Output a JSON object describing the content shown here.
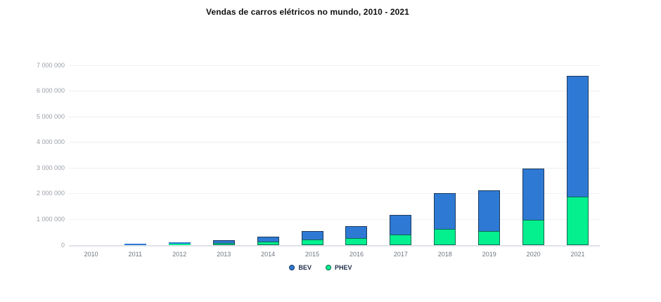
{
  "title": "Vendas de carros elétricos no mundo, 2010 - 2021",
  "chart_data": {
    "type": "bar",
    "stacked": true,
    "title": "Vendas de carros elétricos no mundo, 2010 - 2021",
    "xlabel": "",
    "ylabel": "",
    "categories": [
      "2010",
      "2011",
      "2012",
      "2013",
      "2014",
      "2015",
      "2016",
      "2017",
      "2018",
      "2019",
      "2020",
      "2021"
    ],
    "series": [
      {
        "name": "BEV",
        "color": "#2e79d4",
        "border_color": "#1b3a5c",
        "values": [
          6000,
          55000,
          65000,
          115000,
          195000,
          330000,
          470000,
          760000,
          1380000,
          1560000,
          2000000,
          4700000
        ]
      },
      {
        "name": "PHEV",
        "color": "#04ef8e",
        "border_color": "#0d6b52",
        "values": [
          1000,
          10000,
          55000,
          90000,
          135000,
          220000,
          280000,
          410000,
          630000,
          560000,
          990000,
          1900000
        ]
      }
    ],
    "stack_order_bottom_to_top": [
      "PHEV",
      "BEV"
    ],
    "ylim": [
      0,
      7000000
    ],
    "ytick_step": 1000000,
    "ytick_labels": [
      "0",
      "1 000 000",
      "2 000 000",
      "3 000 000",
      "4 000 000",
      "5 000 000",
      "6 000 000",
      "7 000 000"
    ],
    "grid": "horizontal",
    "legend_position": "bottom-center"
  }
}
